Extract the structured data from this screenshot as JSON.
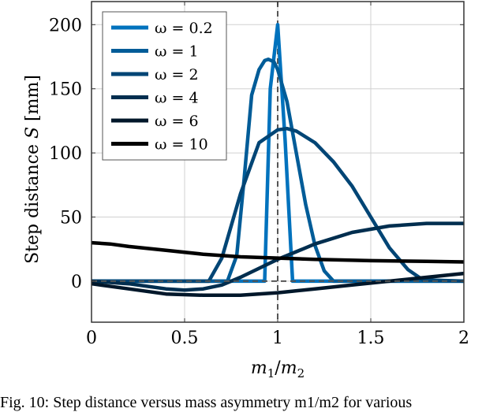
{
  "chart_data": {
    "type": "line",
    "title": "",
    "xlabel": "m1/m2",
    "ylabel": "Step distance S [mm]",
    "xlim": [
      0,
      2
    ],
    "ylim": [
      -32,
      218
    ],
    "xticks": [
      0,
      0.5,
      1,
      1.5,
      2
    ],
    "xtick_labels": [
      "0",
      "0.5",
      "1",
      "1.5",
      "2"
    ],
    "yticks": [
      0,
      50,
      100,
      150,
      200
    ],
    "ytick_labels": [
      "0",
      "50",
      "100",
      "150",
      "200"
    ],
    "grid": true,
    "legend_position": "upper left",
    "reference_lines": {
      "vertical_x": 1,
      "horizontal_y": 0,
      "style": "dashed",
      "color": "#555555"
    },
    "series": [
      {
        "name": "ω = 0.2",
        "color": "#0072BD",
        "x": [
          0,
          0.93,
          0.96,
          1.0,
          1.04,
          1.08,
          2
        ],
        "y": [
          0,
          0,
          150,
          200,
          110,
          0,
          0
        ]
      },
      {
        "name": "ω = 1",
        "color": "#005C98",
        "x": [
          0,
          0.73,
          0.78,
          0.82,
          0.86,
          0.9,
          0.93,
          0.95,
          0.98,
          1.0,
          1.05,
          1.1,
          1.15,
          1.2,
          1.25,
          1.3,
          2
        ],
        "y": [
          0,
          0,
          20,
          80,
          145,
          165,
          172,
          173,
          171,
          165,
          140,
          100,
          60,
          28,
          8,
          0,
          0
        ]
      },
      {
        "name": "ω = 2",
        "color": "#004575",
        "x": [
          0,
          0.63,
          0.7,
          0.8,
          0.9,
          1.0,
          1.05,
          1.1,
          1.2,
          1.3,
          1.4,
          1.5,
          1.6,
          1.7,
          1.78,
          2
        ],
        "y": [
          0,
          0,
          18,
          68,
          108,
          118,
          119,
          117,
          108,
          93,
          74,
          50,
          26,
          9,
          1,
          0
        ]
      },
      {
        "name": "ω = 4",
        "color": "#002E4F",
        "x": [
          0,
          0.2,
          0.4,
          0.5,
          0.6,
          0.7,
          0.8,
          0.9,
          1.0,
          1.1,
          1.2,
          1.4,
          1.6,
          1.8,
          2.0
        ],
        "y": [
          0,
          -2,
          -6,
          -7,
          -6,
          -3,
          3,
          10,
          17,
          23,
          29,
          38,
          43,
          45,
          45
        ]
      },
      {
        "name": "ω = 6",
        "color": "#00172A",
        "x": [
          0,
          0.2,
          0.4,
          0.6,
          0.8,
          1.0,
          1.2,
          1.4,
          1.6,
          1.8,
          2.0
        ],
        "y": [
          -2,
          -6,
          -10,
          -11,
          -11,
          -9,
          -6,
          -3,
          0,
          3,
          6
        ]
      },
      {
        "name": "ω = 10",
        "color": "#000000",
        "x": [
          0,
          0.1,
          0.2,
          0.4,
          0.6,
          0.8,
          1.0,
          1.2,
          1.5,
          1.8,
          2.0
        ],
        "y": [
          30,
          29,
          27,
          24,
          21,
          19,
          18,
          17,
          16,
          15.5,
          15
        ]
      }
    ]
  },
  "axes": {
    "xlabel_main": "m",
    "xlabel_sub1": "1",
    "xlabel_slash": "/",
    "xlabel_sub2": "2",
    "ylabel_text": "Step distance ",
    "ylabel_var": "S",
    "ylabel_unit": " [mm]"
  },
  "legend": {
    "entries": [
      {
        "label": "ω = 0.2",
        "color": "#0072BD"
      },
      {
        "label": "ω = 1",
        "color": "#005C98"
      },
      {
        "label": "ω = 2",
        "color": "#004575"
      },
      {
        "label": "ω = 4",
        "color": "#002E4F"
      },
      {
        "label": "ω = 6",
        "color": "#00172A"
      },
      {
        "label": "ω = 10",
        "color": "#000000"
      }
    ]
  },
  "caption": {
    "text": "Fig. 10: Step distance versus mass asymmetry m1/m2 for various"
  }
}
